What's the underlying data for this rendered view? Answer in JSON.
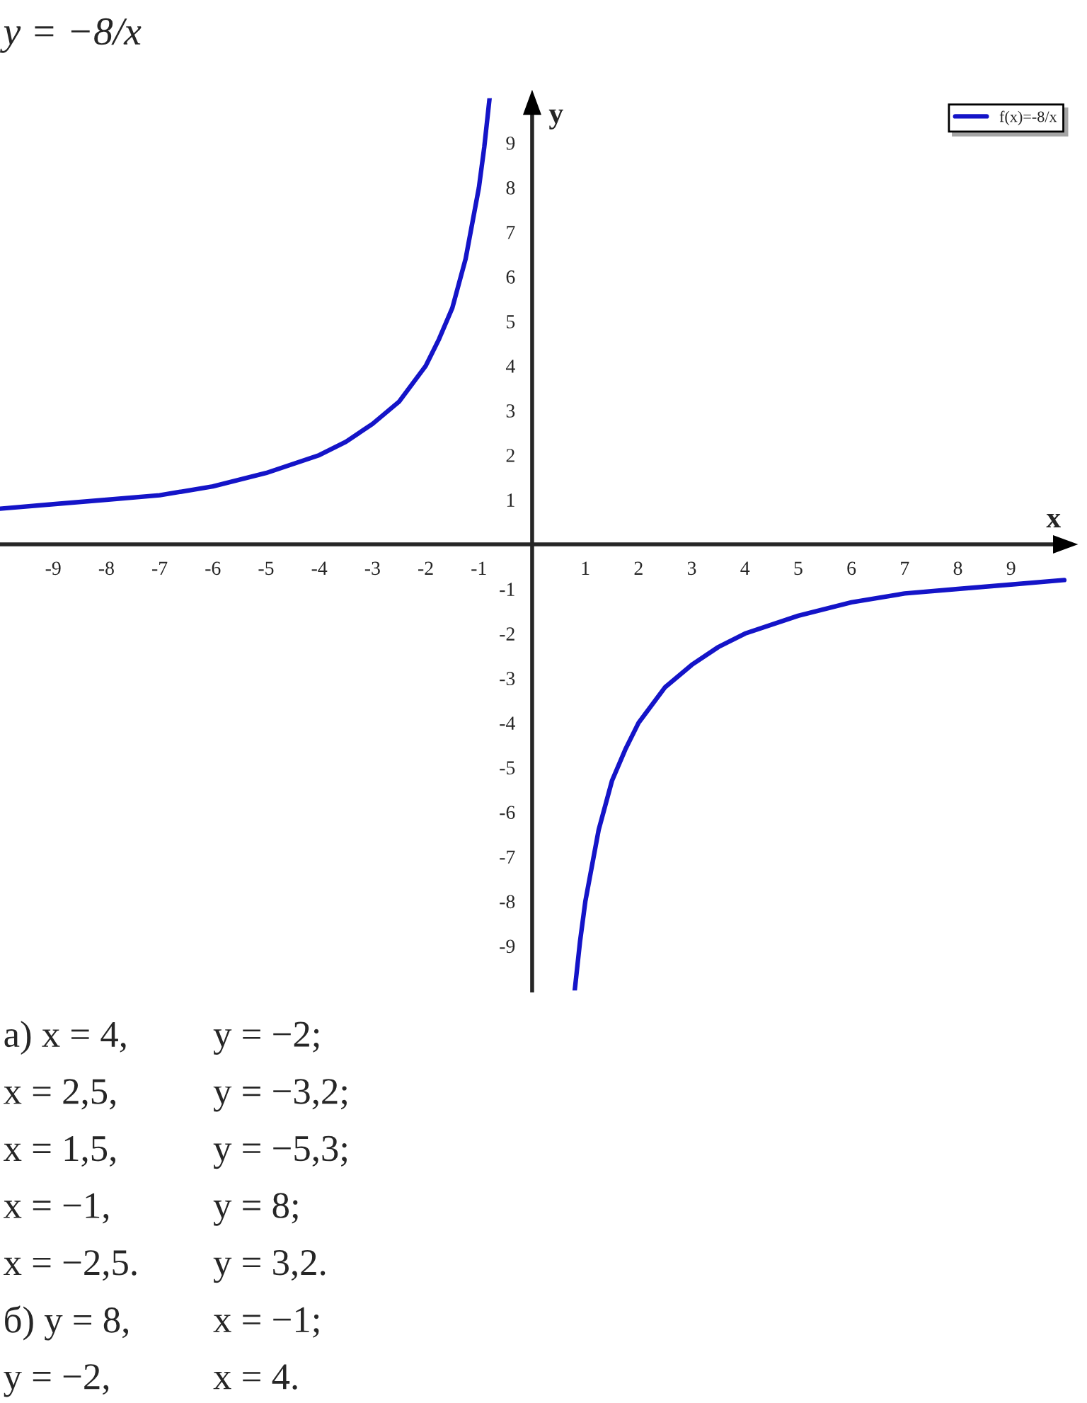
{
  "chart_data": {
    "type": "line",
    "title": "y = −8/x",
    "xlabel": "x",
    "ylabel": "y",
    "x": [
      -10,
      -9,
      -8,
      -7,
      -6,
      -5,
      -4,
      -3.5,
      -3,
      -2.5,
      -2,
      -1.75,
      -1.5,
      -1.25,
      -1,
      -0.9,
      -0.8,
      0,
      0.8,
      0.9,
      1,
      1.25,
      1.5,
      1.75,
      2,
      2.5,
      3,
      3.5,
      4,
      5,
      6,
      7,
      8,
      9,
      10
    ],
    "series": [
      {
        "name": "f(x)=-8/x",
        "color": "#1414c8",
        "values": [
          0.8,
          0.9,
          1,
          1.1,
          1.3,
          1.6,
          2,
          2.3,
          2.7,
          3.2,
          4,
          4.6,
          5.3,
          6.4,
          8,
          8.9,
          10,
          null,
          -10,
          -8.9,
          -8,
          -6.4,
          -5.3,
          -4.6,
          -4,
          -3.2,
          -2.7,
          -2.3,
          -2,
          -1.6,
          -1.3,
          -1.1,
          -1,
          -0.9,
          -0.8
        ]
      }
    ],
    "xlim": [
      -10,
      10.1
    ],
    "ylim": [
      -10,
      10
    ],
    "xticks": [
      -9,
      -8,
      -7,
      -6,
      -5,
      -4,
      -3,
      -2,
      -1,
      1,
      2,
      3,
      4,
      5,
      6,
      7,
      8,
      9
    ],
    "yticks": [
      -9,
      -8,
      -7,
      -6,
      -5,
      -4,
      -3,
      -2,
      -1,
      1,
      2,
      3,
      4,
      5,
      6,
      7,
      8,
      9
    ],
    "grid": false,
    "legend": "top right",
    "marker": "none",
    "line_style": "solid",
    "annotations": [
      "а) x = 4,",
      "y = −2;",
      "x = 2,5,",
      "y = −3,2;",
      "x = 1,5,",
      "y = −5,3;",
      "x = −1,",
      "y = 8;",
      "x = −2,5.",
      "y = 3,2.",
      "б) y = 8,",
      "x = −1;",
      "y = −2,",
      "x = 4."
    ]
  }
}
